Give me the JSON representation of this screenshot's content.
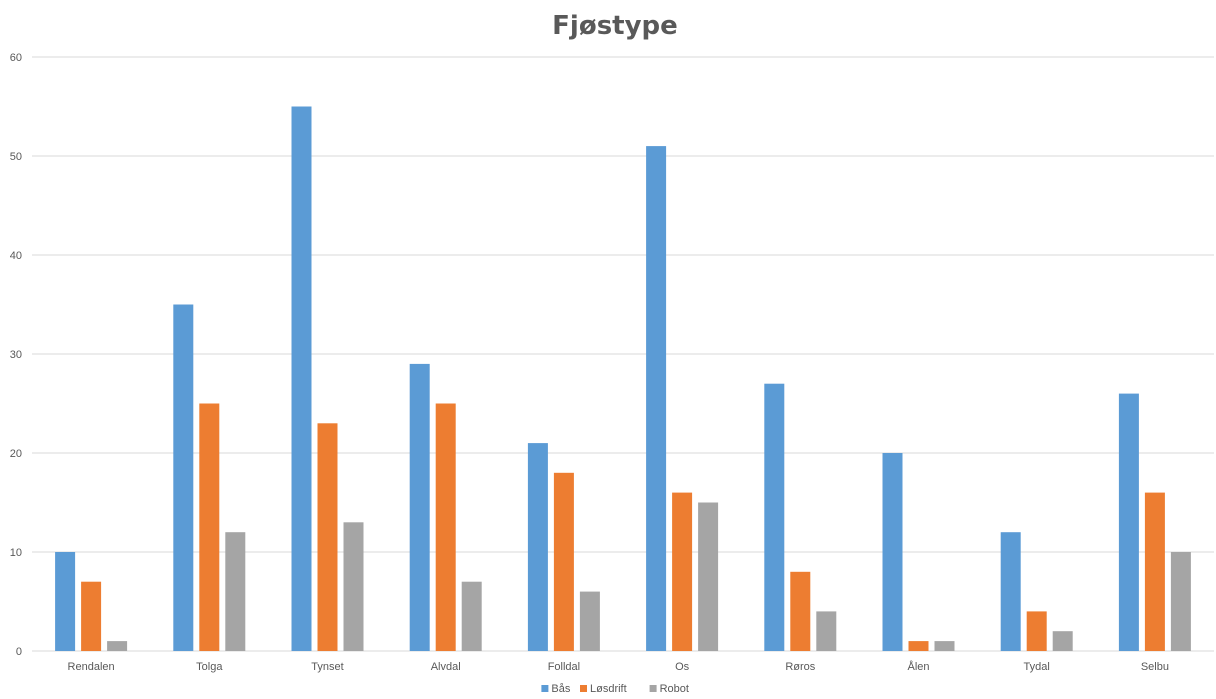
{
  "chart_data": {
    "type": "bar",
    "title": "Fjøstype",
    "xlabel": "",
    "ylabel": "",
    "ylim": [
      0,
      60
    ],
    "yticks": [
      0,
      10,
      20,
      30,
      40,
      50,
      60
    ],
    "grid": true,
    "legend_position": "bottom",
    "categories": [
      "Rendalen",
      "Tolga",
      "Tynset",
      "Alvdal",
      "Folldal",
      "Os",
      "Røros",
      "Ålen",
      "Tydal",
      "Selbu"
    ],
    "series": [
      {
        "name": "Bås",
        "color": "#5b9bd5",
        "values": [
          10,
          35,
          55,
          29,
          21,
          51,
          27,
          20,
          12,
          26
        ]
      },
      {
        "name": "Løsdrift",
        "color": "#ed7d31",
        "values": [
          7,
          25,
          23,
          25,
          18,
          16,
          8,
          1,
          4,
          16
        ]
      },
      {
        "name": "Robot",
        "color": "#a5a5a5",
        "values": [
          1,
          12,
          13,
          7,
          6,
          15,
          4,
          1,
          2,
          10
        ]
      }
    ]
  }
}
